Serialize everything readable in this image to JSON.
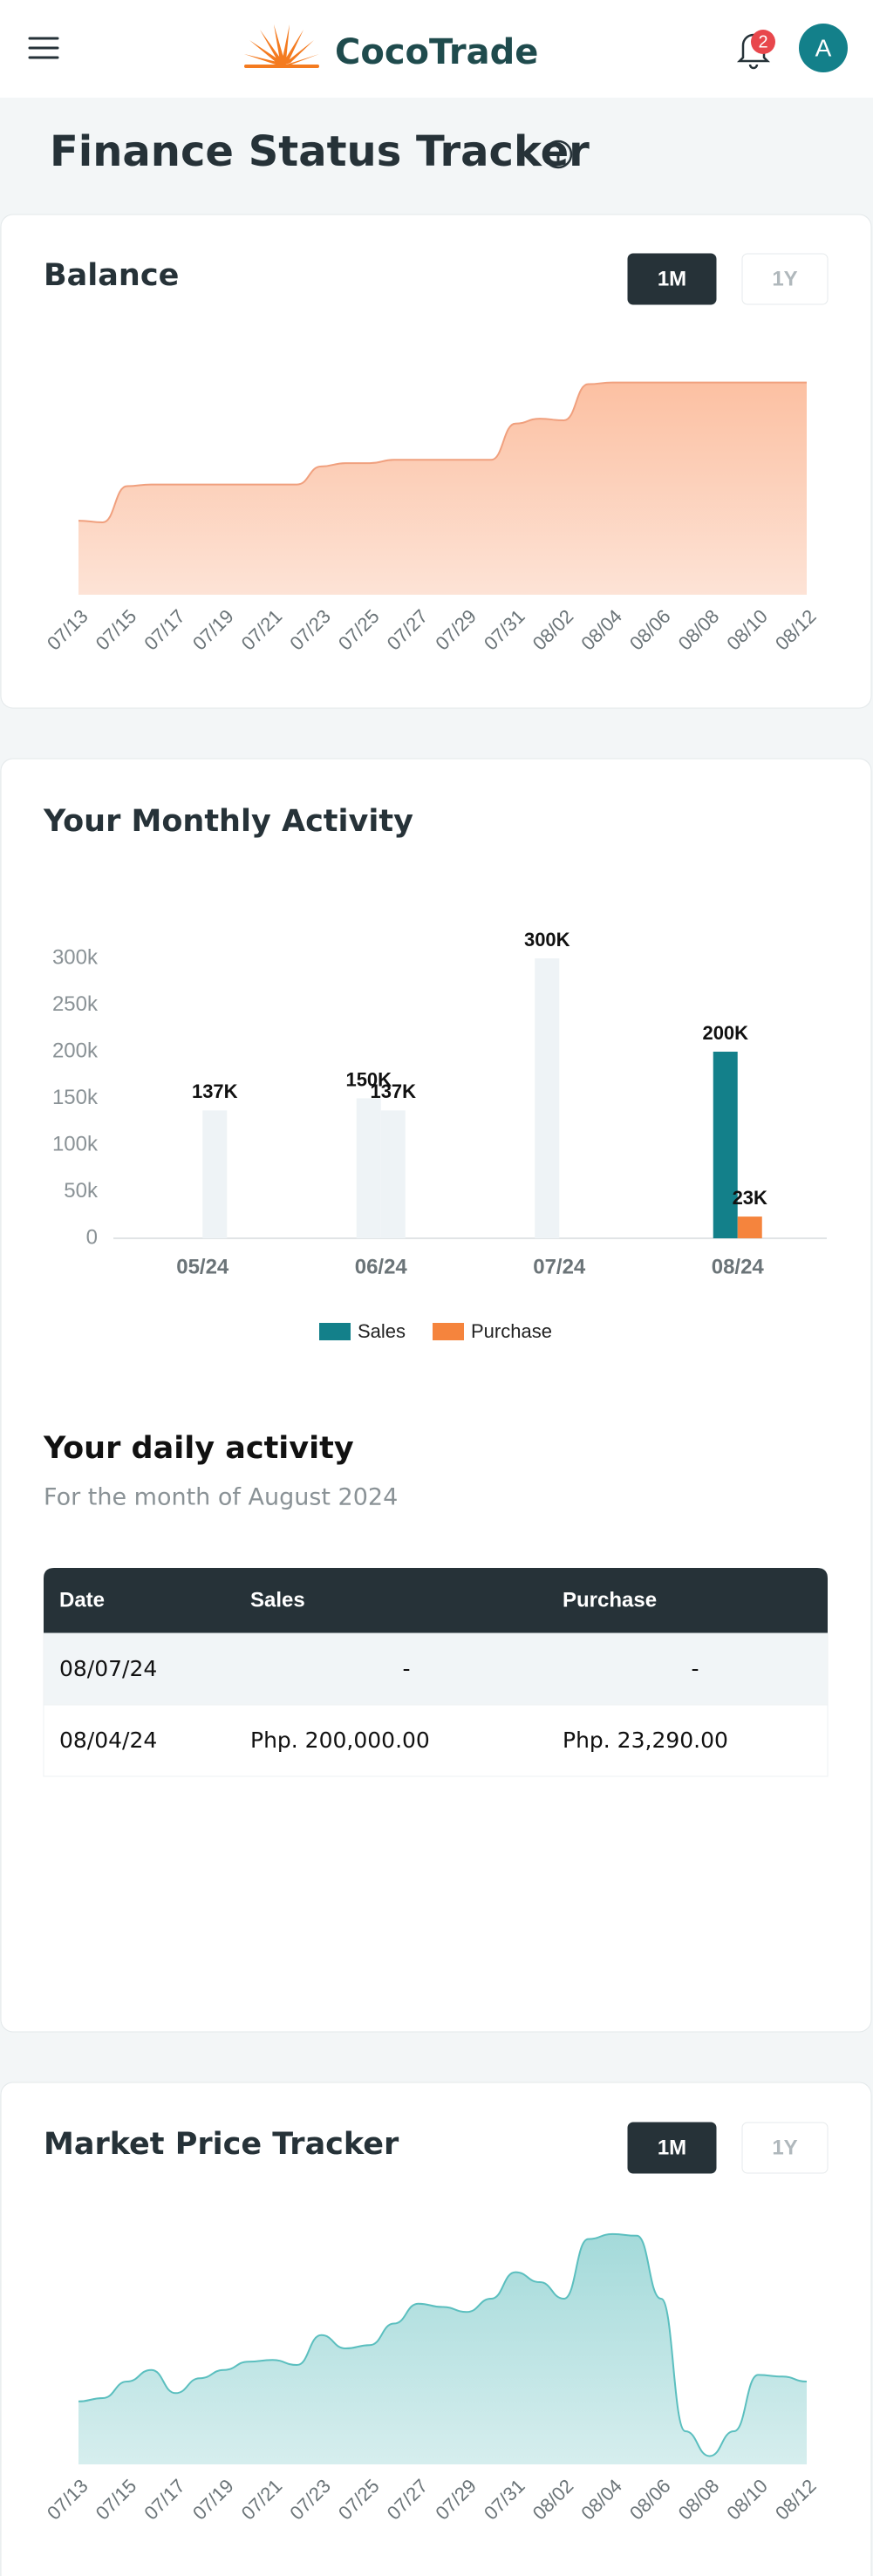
{
  "header": {
    "brand": "CocoTrade",
    "notifications": "2",
    "avatar": "A"
  },
  "title": "Finance Status Tracker",
  "range_options": [
    "1M",
    "1Y"
  ],
  "chart_data": [
    {
      "type": "area",
      "title": "Balance",
      "color": "#f0a07e",
      "fill": "#fcc3a6",
      "categories": [
        "07/13",
        null,
        "07/15",
        null,
        "07/17",
        null,
        "07/19",
        null,
        "07/21",
        null,
        "07/23",
        null,
        "07/25",
        null,
        "07/27",
        null,
        "07/29",
        null,
        "07/31",
        null,
        "08/02",
        null,
        "08/04",
        null,
        "08/06",
        null,
        "08/08",
        null,
        "08/10",
        null,
        "08/12"
      ],
      "values": [
        45,
        44,
        66,
        67,
        67,
        67,
        67,
        67,
        67,
        67,
        78,
        80,
        80,
        82,
        82,
        82,
        82,
        82,
        104,
        107,
        106,
        128,
        129,
        129,
        129,
        129,
        129,
        129,
        129,
        129,
        129
      ],
      "ylim": [
        0,
        150
      ]
    },
    {
      "type": "bar",
      "title": "Your Monthly Activity",
      "categories": [
        "05/24",
        "06/24",
        "07/24",
        "08/24"
      ],
      "active_category": "08/24",
      "inactive_color": "#eef3f6",
      "series": [
        {
          "name": "Sales",
          "color": "#13808a",
          "values": [
            null,
            150000,
            300000,
            200000
          ],
          "value_labels": [
            null,
            "150K",
            "300K",
            "200K"
          ]
        },
        {
          "name": "Purchase",
          "color": "#f5843d",
          "values": [
            137000,
            137000,
            null,
            23290
          ],
          "value_labels": [
            "137K",
            "137K",
            null,
            "23K"
          ]
        }
      ],
      "ylim": [
        0,
        300000
      ],
      "yticks": [
        0,
        {
          "value": 50000,
          "label": "50k"
        },
        {
          "value": 100000,
          "label": "100k"
        },
        {
          "value": 150000,
          "label": "150k"
        },
        {
          "value": 200000,
          "label": "200k"
        },
        {
          "value": 250000,
          "label": "250k"
        },
        {
          "value": 300000,
          "label": "300k"
        }
      ],
      "legend": "bottom"
    },
    {
      "type": "area",
      "title": "Market Price Tracker",
      "color": "#5bbfbf",
      "fill": "#a9dcdc",
      "categories": [
        "07/13",
        null,
        "07/15",
        null,
        "07/17",
        null,
        "07/19",
        null,
        "07/21",
        null,
        "07/23",
        null,
        "07/25",
        null,
        "07/27",
        null,
        "07/29",
        null,
        "07/31",
        null,
        "08/02",
        null,
        "08/04",
        null,
        "08/06",
        null,
        "08/08",
        null,
        "08/10",
        null,
        "08/12"
      ],
      "values": [
        38,
        40,
        50,
        57,
        43,
        52,
        57,
        62,
        63,
        60,
        78,
        70,
        72,
        85,
        97,
        95,
        92,
        100,
        116,
        110,
        100,
        136,
        139,
        138,
        100,
        20,
        5,
        20,
        54,
        53,
        50
      ],
      "ylim": [
        0,
        150
      ]
    }
  ],
  "daily": {
    "title": "Your daily activity",
    "subtitle": "For the month of August 2024",
    "table": {
      "columns": [
        "Date",
        "Sales",
        "Purchase"
      ],
      "rows": [
        [
          "08/07/24",
          "-",
          "-"
        ],
        [
          "08/04/24",
          "Php. 200,000.00",
          "Php. 23,290.00"
        ]
      ]
    }
  }
}
